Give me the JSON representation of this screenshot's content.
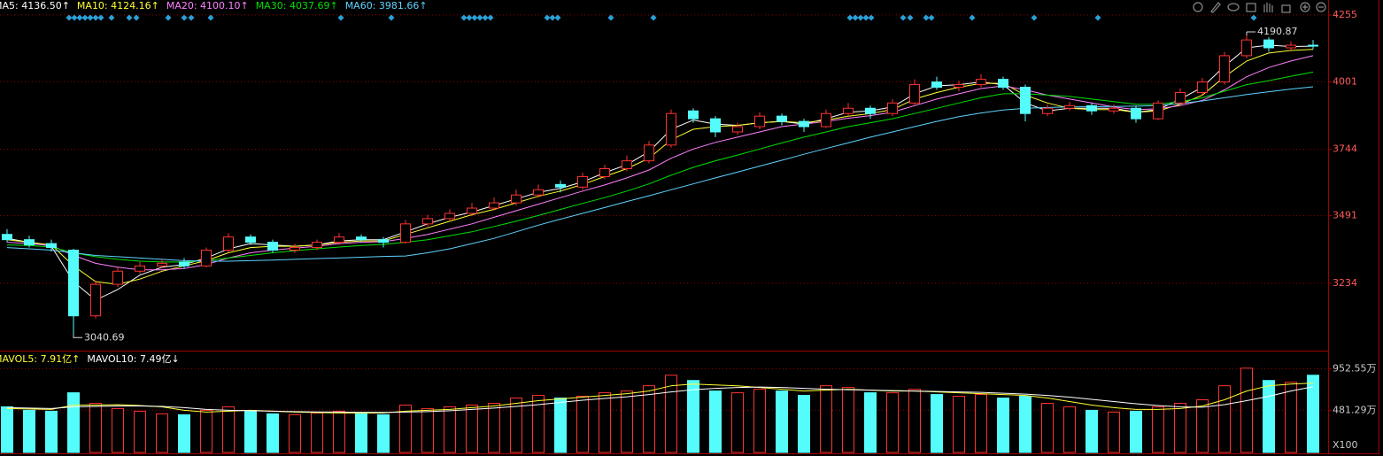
{
  "chart_data": [
    {
      "type": "candlestick",
      "open": [
        3420,
        3400,
        3385,
        3360,
        3110,
        3230,
        3280,
        3300,
        3315,
        3300,
        3360,
        3410,
        3390,
        3360,
        3370,
        3390,
        3410,
        3400,
        3390,
        3460,
        3480,
        3500,
        3520,
        3540,
        3570,
        3610,
        3600,
        3640,
        3670,
        3700,
        3760,
        3890,
        3860,
        3810,
        3830,
        3870,
        3850,
        3830,
        3880,
        3900,
        3880,
        3920,
        4000,
        3980,
        3990,
        4010,
        3980,
        3880,
        3900,
        3910,
        3890,
        3900,
        3860,
        3920,
        3960,
        4000,
        4100,
        4160,
        4130,
        4140
      ],
      "high": [
        3440,
        3415,
        3400,
        3365,
        3245,
        3295,
        3315,
        3325,
        3330,
        3370,
        3425,
        3420,
        3400,
        3385,
        3400,
        3425,
        3420,
        3410,
        3475,
        3495,
        3515,
        3540,
        3560,
        3590,
        3610,
        3625,
        3655,
        3685,
        3720,
        3775,
        3895,
        3900,
        3870,
        3845,
        3885,
        3880,
        3860,
        3895,
        3920,
        3910,
        3935,
        4010,
        4020,
        4005,
        4030,
        4020,
        3990,
        3915,
        3925,
        3920,
        3915,
        3910,
        3930,
        3975,
        4015,
        4115,
        4190.87,
        4170,
        4155,
        4160
      ],
      "low": [
        3390,
        3370,
        3355,
        3040.69,
        3100,
        3220,
        3270,
        3290,
        3290,
        3295,
        3350,
        3380,
        3350,
        3350,
        3360,
        3380,
        3390,
        3370,
        3385,
        3450,
        3470,
        3490,
        3510,
        3530,
        3560,
        3580,
        3590,
        3630,
        3660,
        3690,
        3750,
        3845,
        3790,
        3800,
        3820,
        3835,
        3810,
        3825,
        3870,
        3860,
        3870,
        3910,
        3970,
        3965,
        3980,
        3970,
        3850,
        3870,
        3890,
        3875,
        3880,
        3845,
        3855,
        3910,
        3950,
        3990,
        4090,
        4115,
        4120,
        4125
      ],
      "close": [
        3400,
        3380,
        3370,
        3110,
        3230,
        3280,
        3300,
        3310,
        3300,
        3360,
        3410,
        3390,
        3360,
        3370,
        3390,
        3410,
        3400,
        3390,
        3460,
        3480,
        3500,
        3520,
        3540,
        3570,
        3590,
        3600,
        3640,
        3670,
        3700,
        3760,
        3880,
        3860,
        3810,
        3830,
        3870,
        3850,
        3830,
        3880,
        3900,
        3880,
        3920,
        3990,
        3980,
        3990,
        4010,
        3980,
        3880,
        3900,
        3910,
        3890,
        3900,
        3860,
        3920,
        3960,
        4000,
        4100,
        4160,
        4130,
        4140,
        4136.5
      ],
      "up_color": "#ff3232",
      "down_color": "#54fcfc",
      "ylim": [
        2981,
        4312
      ],
      "yticks": [
        3234,
        3491,
        3744,
        4001,
        4255
      ],
      "grid": true,
      "series": [
        {
          "name": "MA5: 4136.50↑",
          "color": "#ffffff",
          "values": [
            3405,
            3390,
            3375,
            3240,
            3170,
            3210,
            3265,
            3295,
            3305,
            3330,
            3365,
            3385,
            3380,
            3375,
            3380,
            3395,
            3400,
            3400,
            3430,
            3460,
            3485,
            3505,
            3530,
            3555,
            3580,
            3595,
            3620,
            3655,
            3685,
            3735,
            3820,
            3855,
            3840,
            3835,
            3845,
            3850,
            3840,
            3860,
            3885,
            3890,
            3905,
            3955,
            3985,
            3990,
            4000,
            3990,
            3920,
            3890,
            3900,
            3900,
            3900,
            3885,
            3895,
            3935,
            3980,
            4060,
            4130,
            4140,
            4135,
            4136.5
          ]
        },
        {
          "name": "MA10: 4124.16↑",
          "color": "#ffff33",
          "values": [
            3400,
            3390,
            3380,
            3300,
            3240,
            3230,
            3250,
            3280,
            3300,
            3320,
            3350,
            3370,
            3375,
            3375,
            3380,
            3390,
            3395,
            3395,
            3420,
            3445,
            3470,
            3495,
            3515,
            3540,
            3565,
            3585,
            3610,
            3640,
            3670,
            3710,
            3780,
            3820,
            3830,
            3835,
            3845,
            3850,
            3845,
            3855,
            3870,
            3880,
            3895,
            3935,
            3960,
            3980,
            3995,
            3995,
            3950,
            3920,
            3900,
            3895,
            3895,
            3885,
            3890,
            3915,
            3950,
            4020,
            4080,
            4110,
            4120,
            4124.16
          ]
        },
        {
          "name": "MA20: 4100.10↑",
          "color": "#ff80ff",
          "values": [
            3390,
            3385,
            3378,
            3340,
            3310,
            3295,
            3285,
            3285,
            3290,
            3305,
            3330,
            3350,
            3360,
            3368,
            3375,
            3385,
            3390,
            3392,
            3405,
            3420,
            3440,
            3460,
            3485,
            3510,
            3535,
            3560,
            3585,
            3608,
            3635,
            3665,
            3710,
            3745,
            3770,
            3790,
            3810,
            3830,
            3840,
            3850,
            3862,
            3872,
            3885,
            3910,
            3935,
            3955,
            3975,
            3985,
            3970,
            3950,
            3935,
            3920,
            3905,
            3895,
            3898,
            3910,
            3930,
            3970,
            4020,
            4055,
            4080,
            4100.1
          ]
        },
        {
          "name": "MA30: 4037.69↑",
          "color": "#00e000",
          "values": [
            3380,
            3378,
            3372,
            3350,
            3335,
            3325,
            3318,
            3315,
            3315,
            3320,
            3330,
            3340,
            3350,
            3358,
            3365,
            3372,
            3378,
            3382,
            3390,
            3400,
            3415,
            3430,
            3450,
            3470,
            3492,
            3515,
            3538,
            3560,
            3585,
            3612,
            3645,
            3675,
            3700,
            3722,
            3745,
            3768,
            3790,
            3810,
            3830,
            3845,
            3860,
            3880,
            3900,
            3920,
            3940,
            3955,
            3955,
            3950,
            3945,
            3935,
            3925,
            3915,
            3915,
            3925,
            3940,
            3965,
            3990,
            4005,
            4022,
            4037.69
          ]
        },
        {
          "name": "MA60: 3981.66↑",
          "color": "#5fd3ff",
          "values": [
            3370,
            3365,
            3360,
            3350,
            3340,
            3335,
            3330,
            3325,
            3320,
            3318,
            3318,
            3320,
            3322,
            3325,
            3328,
            3330,
            3333,
            3336,
            3338,
            3350,
            3365,
            3385,
            3405,
            3430,
            3455,
            3478,
            3500,
            3522,
            3545,
            3567,
            3590,
            3612,
            3635,
            3657,
            3680,
            3702,
            3725,
            3747,
            3768,
            3790,
            3810,
            3830,
            3850,
            3868,
            3882,
            3893,
            3900,
            3903,
            3905,
            3906,
            3907,
            3908,
            3910,
            3918,
            3928,
            3940,
            3952,
            3963,
            3973,
            3981.66
          ]
        }
      ]
    },
    {
      "type": "volume",
      "values": [
        520,
        480,
        470,
        680,
        560,
        500,
        470,
        440,
        430,
        480,
        520,
        470,
        440,
        430,
        450,
        470,
        440,
        430,
        540,
        500,
        520,
        540,
        560,
        620,
        650,
        620,
        640,
        680,
        700,
        760,
        880,
        820,
        700,
        680,
        720,
        700,
        650,
        760,
        740,
        680,
        680,
        720,
        660,
        640,
        660,
        620,
        640,
        560,
        520,
        480,
        460,
        470,
        520,
        560,
        600,
        760,
        960,
        820,
        800,
        880
      ],
      "ylim": [
        0,
        1150
      ],
      "yticks": [
        {
          "value": 481.29,
          "label": "481.29万"
        },
        {
          "value": 952.55,
          "label": "952.55万"
        }
      ],
      "grid": true,
      "unit_label": "X100",
      "series": [
        {
          "name": "MAVOL5: 7.91亿↑",
          "color": "#ffff33",
          "values": [
            500,
            495,
            490,
            540,
            540,
            545,
            535,
            520,
            480,
            460,
            470,
            480,
            470,
            460,
            455,
            450,
            450,
            450,
            470,
            480,
            490,
            510,
            530,
            560,
            590,
            610,
            630,
            650,
            670,
            700,
            760,
            780,
            770,
            760,
            740,
            720,
            700,
            710,
            720,
            710,
            700,
            700,
            690,
            680,
            670,
            660,
            650,
            620,
            580,
            540,
            510,
            490,
            490,
            500,
            530,
            600,
            700,
            760,
            780,
            791
          ]
        },
        {
          "name": "MAVOL10: 7.49亿↓",
          "color": "#ffffff",
          "values": [
            510,
            505,
            500,
            520,
            525,
            530,
            530,
            525,
            510,
            490,
            480,
            475,
            470,
            465,
            462,
            460,
            458,
            456,
            460,
            465,
            475,
            490,
            505,
            525,
            545,
            570,
            595,
            615,
            635,
            660,
            690,
            715,
            730,
            740,
            745,
            740,
            730,
            720,
            715,
            710,
            705,
            700,
            695,
            690,
            685,
            675,
            665,
            650,
            630,
            605,
            580,
            555,
            535,
            520,
            515,
            545,
            590,
            640,
            700,
            749
          ]
        }
      ]
    }
  ]
}
